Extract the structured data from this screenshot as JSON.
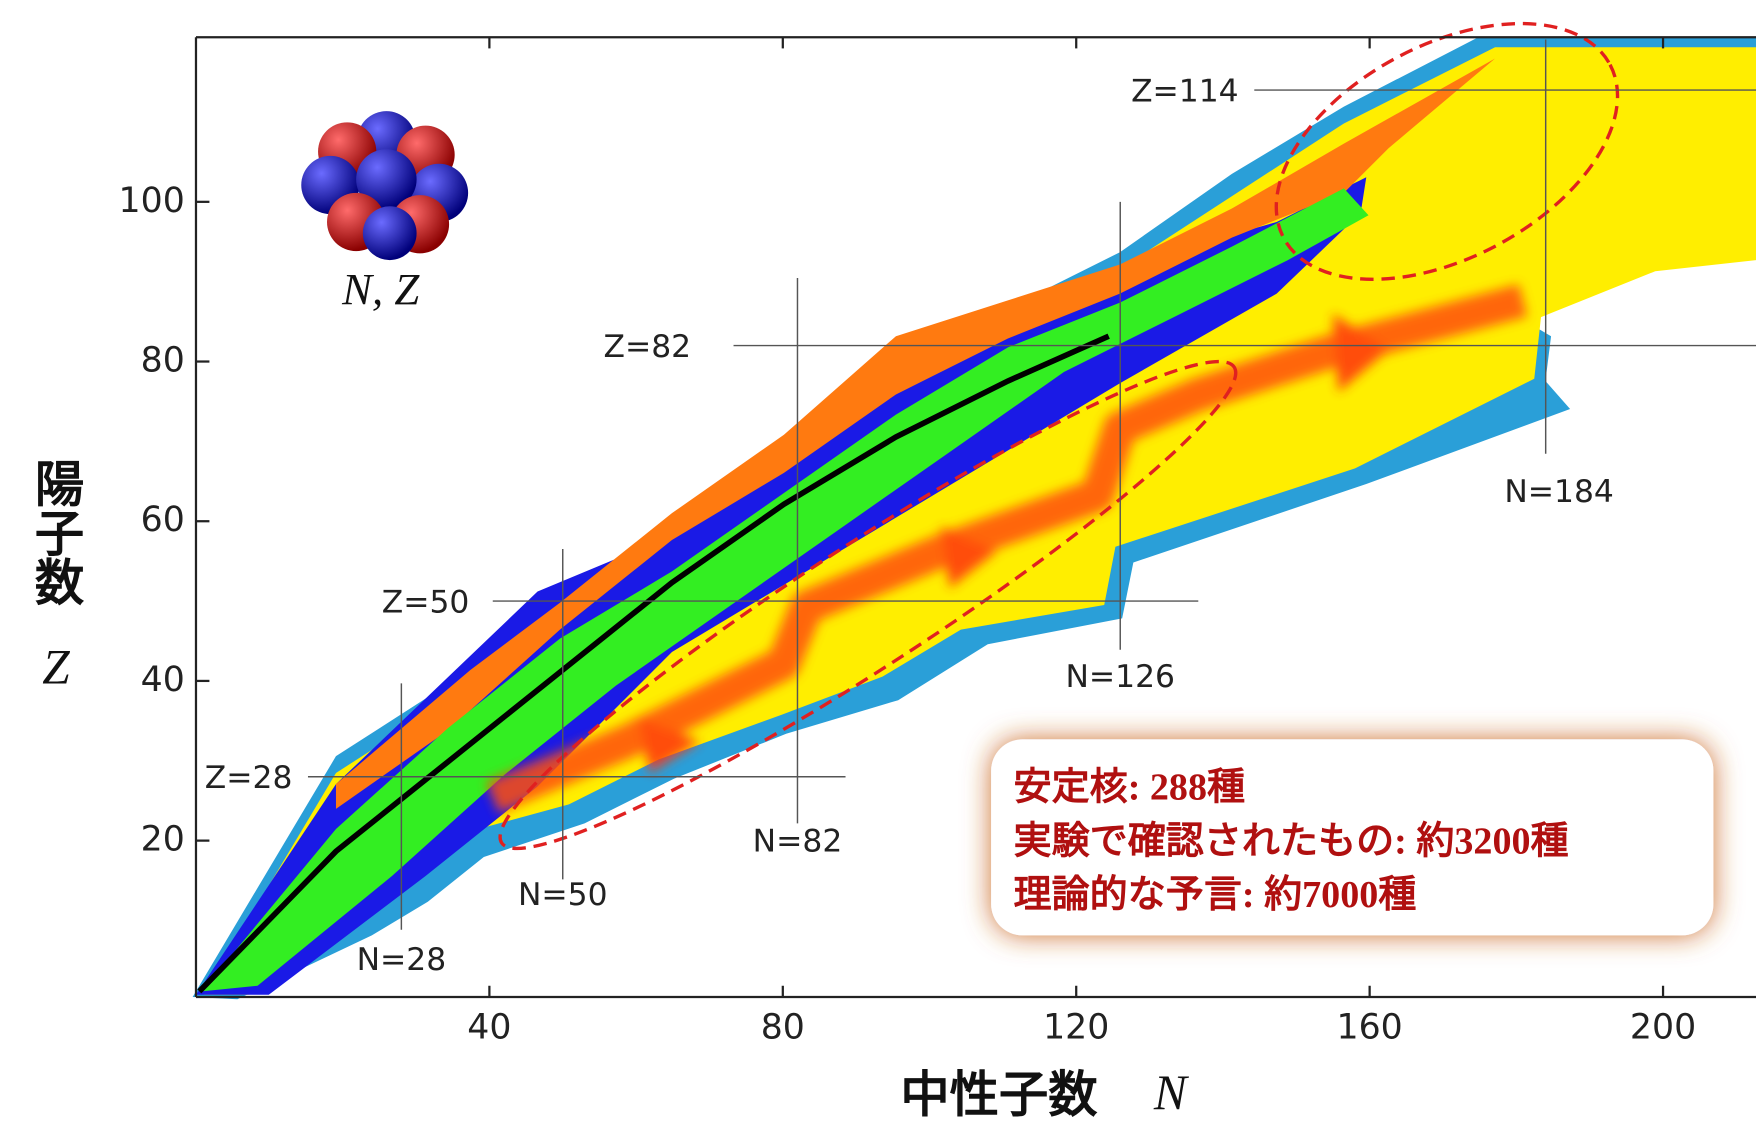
{
  "chart_data": {
    "type": "nuclide-chart",
    "xlabel": "中性子数",
    "xlabel_symbol": "N",
    "ylabel": "陽子数",
    "ylabel_symbol": "Z",
    "xlim": [
      0,
      213
    ],
    "ylim": [
      0,
      120
    ],
    "xticks": [
      40,
      80,
      120,
      160,
      200
    ],
    "yticks": [
      20,
      40,
      60,
      80,
      100
    ],
    "icon_label": "N, Z",
    "magic_protons": [
      {
        "value": 28,
        "label": "Z=28"
      },
      {
        "value": 50,
        "label": "Z=50"
      },
      {
        "value": 82,
        "label": "Z=82"
      },
      {
        "value": 114,
        "label": "Z=114"
      }
    ],
    "magic_neutrons": [
      {
        "value": 28,
        "label": "N=28"
      },
      {
        "value": 50,
        "label": "N=50"
      },
      {
        "value": 82,
        "label": "N=82"
      },
      {
        "value": 126,
        "label": "N=126"
      },
      {
        "value": 184,
        "label": "N=184"
      }
    ],
    "notes": [
      "安定核: 288種",
      "実験で確認されたもの: 約3200種",
      "理論的な予言: 約7000種"
    ]
  }
}
